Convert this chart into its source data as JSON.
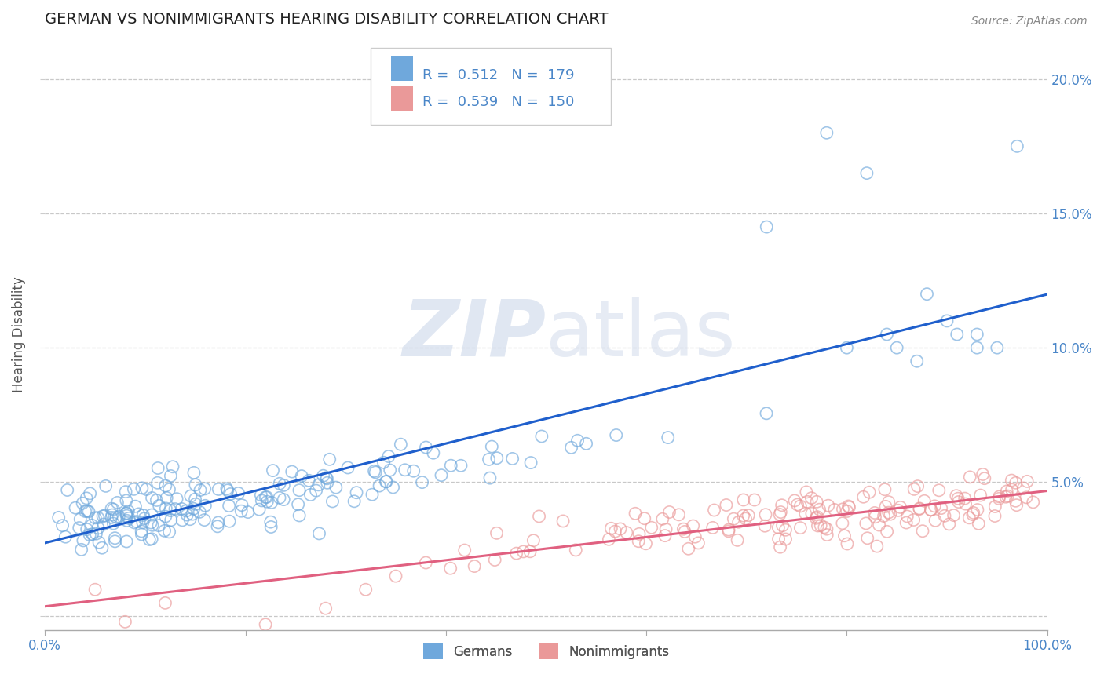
{
  "title": "GERMAN VS NONIMMIGRANTS HEARING DISABILITY CORRELATION CHART",
  "source": "Source: ZipAtlas.com",
  "ylabel": "Hearing Disability",
  "xlim": [
    0.0,
    1.0
  ],
  "ylim": [
    -0.005,
    0.215
  ],
  "xticks": [
    0.0,
    0.2,
    0.4,
    0.6,
    0.8,
    1.0
  ],
  "xticklabels": [
    "0.0%",
    "",
    "",
    "",
    "",
    "100.0%"
  ],
  "yticks": [
    0.0,
    0.05,
    0.1,
    0.15,
    0.2
  ],
  "yticklabels": [
    "",
    "",
    "",
    "",
    ""
  ],
  "right_yticks": [
    0.05,
    0.1,
    0.15,
    0.2
  ],
  "right_yticklabels": [
    "5.0%",
    "10.0%",
    "15.0%",
    "20.0%"
  ],
  "german_color": "#6fa8dc",
  "nonimmigrant_color": "#ea9999",
  "german_line_color": "#1f5fcc",
  "nonimmigrant_line_color": "#e06080",
  "legend_R_german": "0.512",
  "legend_N_german": "179",
  "legend_R_nonimmigrant": "0.539",
  "legend_N_nonimmigrant": "150",
  "watermark_zip": "ZIP",
  "watermark_atlas": "atlas",
  "background_color": "#ffffff",
  "grid_color": "#bbbbbb",
  "title_color": "#222222",
  "axis_label_color": "#555555",
  "tick_color": "#4a86c8",
  "legend_text_color_val": "#4a86c8",
  "source_color": "#888888"
}
